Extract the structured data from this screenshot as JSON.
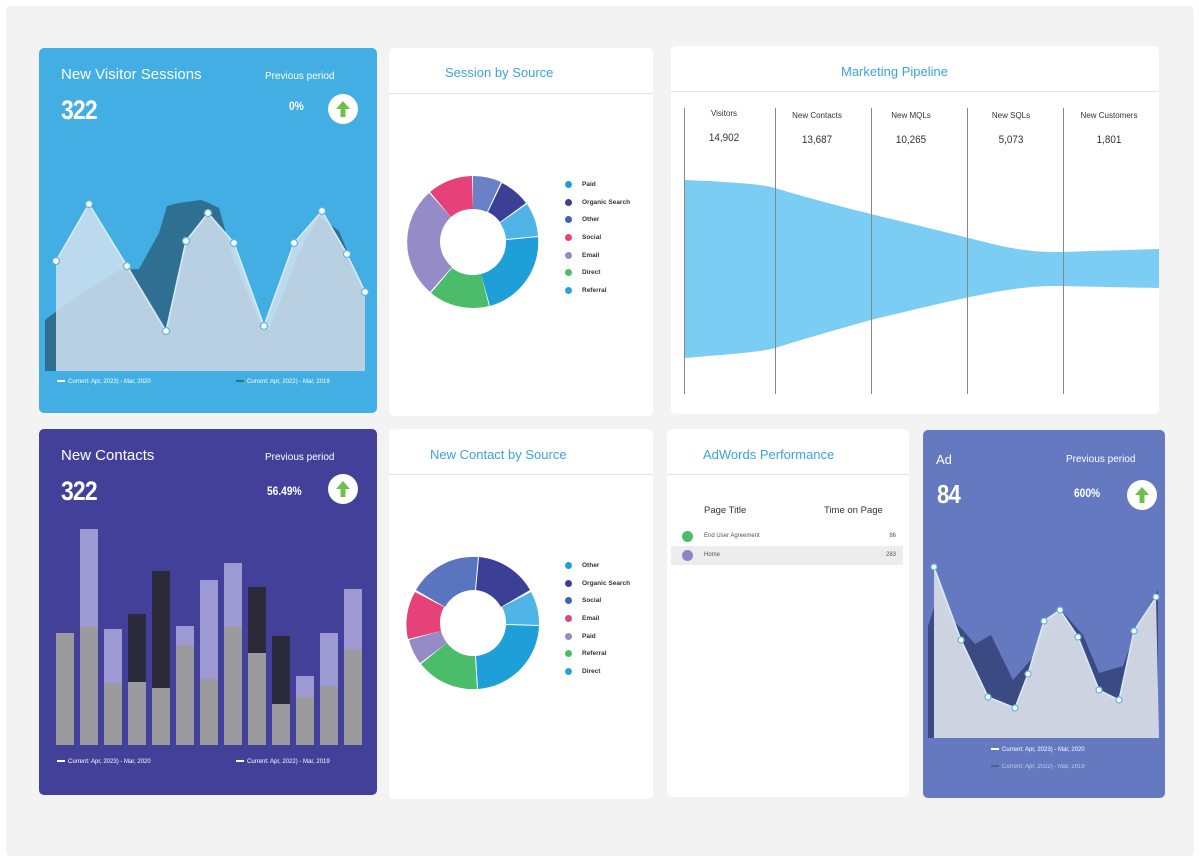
{
  "colors": {
    "accent_title": "#3aa3df",
    "visitor_card": "#42aee4",
    "contacts_card": "#43409a",
    "ad_card": "#6479c0",
    "arrow_up": "#6ec04a",
    "pipeline_fill": "#7ccdf4"
  },
  "visitor_sessions": {
    "title": "New Visitor Sessions",
    "value": "322",
    "prev_label": "Previous period",
    "prev_value": "0%",
    "icon": "arrow-up-icon",
    "legend_current": "Current: Apr, 2023) - Mar, 2020",
    "legend_previous": "Current: Apr, 2022) - Mar, 2019"
  },
  "session_by_source": {
    "title": "Session by Source",
    "legend": [
      {
        "label": "Paid",
        "color": "#1e9fd8"
      },
      {
        "label": "Organic Search",
        "color": "#3c3f96"
      },
      {
        "label": "Other",
        "color": "#3f63b0"
      },
      {
        "label": "Social",
        "color": "#e6427a"
      },
      {
        "label": "Email",
        "color": "#958bc6"
      },
      {
        "label": "Direct",
        "color": "#4bbd6a"
      },
      {
        "label": "Referral",
        "color": "#2aa2dc"
      }
    ]
  },
  "marketing_pipeline": {
    "title": "Marketing Pipeline",
    "stages": [
      {
        "name": "Visitors",
        "value": "14,902"
      },
      {
        "name": "New Contacts",
        "value": "13,687"
      },
      {
        "name": "New MQLs",
        "value": "10,265"
      },
      {
        "name": "New SQLs",
        "value": "5,073"
      },
      {
        "name": "New Customers",
        "value": "1,801"
      }
    ]
  },
  "new_contacts": {
    "title": "New Contacts",
    "value": "322",
    "prev_label": "Previous period",
    "prev_value": "56.49%",
    "icon": "arrow-up-icon",
    "legend_current": "Current: Apr, 2023) - Mar, 2020",
    "legend_previous": "Current: Apr, 2022) - Mar, 2019"
  },
  "new_contact_by_source": {
    "title": "New Contact by Source",
    "legend": [
      {
        "label": "Other",
        "color": "#1e9fd8"
      },
      {
        "label": "Organic Search",
        "color": "#3c3f96"
      },
      {
        "label": "Social",
        "color": "#3f63b0"
      },
      {
        "label": "Email",
        "color": "#e6427a"
      },
      {
        "label": "Paid",
        "color": "#958bc6"
      },
      {
        "label": "Referral",
        "color": "#4bbd6a"
      },
      {
        "label": "Direct",
        "color": "#2aa2dc"
      }
    ]
  },
  "adwords": {
    "title": "AdWords Performance",
    "col_page": "Page Title",
    "col_time": "Time on Page",
    "rows": [
      {
        "title": "End User Agreement",
        "value": "86",
        "color": "#4bbd6a"
      },
      {
        "title": "Home",
        "value": "283",
        "color": "#8e86c4"
      }
    ]
  },
  "ad": {
    "title": "Ad",
    "value": "84",
    "prev_label": "Previous period",
    "prev_value": "600%",
    "icon": "arrow-up-icon",
    "legend_current": "Current: Apr, 2023) - Mar, 2020",
    "legend_previous": "Current: Apr, 2022) - Mar, 2019"
  }
}
